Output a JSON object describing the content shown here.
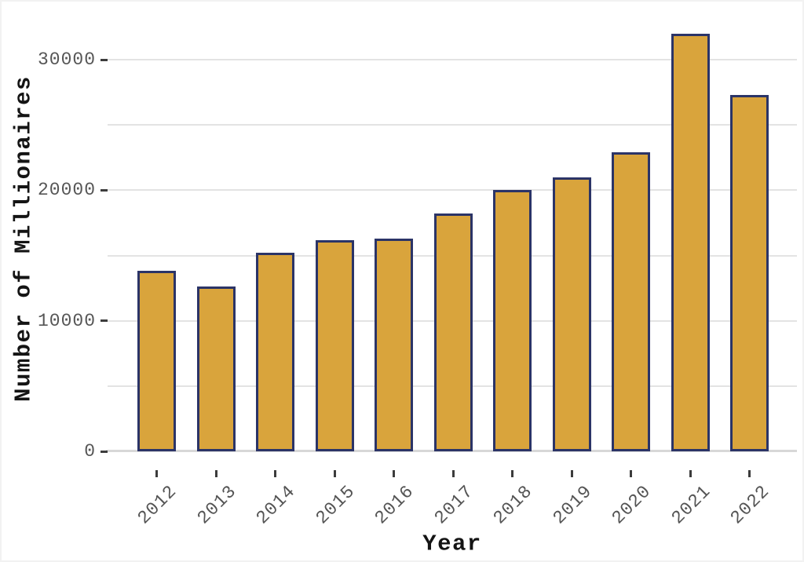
{
  "figure": {
    "background": "#ffffff",
    "border_color": "#f2f2f2"
  },
  "chart_data": {
    "type": "bar",
    "title": "",
    "xlabel": "Year",
    "ylabel": "Number of Millionaires",
    "categories": [
      "2012",
      "2013",
      "2014",
      "2015",
      "2016",
      "2017",
      "2018",
      "2019",
      "2020",
      "2021",
      "2022"
    ],
    "values": [
      13800,
      12600,
      15200,
      16200,
      16300,
      18200,
      20000,
      21000,
      22900,
      32000,
      27300
    ],
    "ylim": [
      0,
      33250
    ],
    "ytick_values": [
      0,
      10000,
      20000,
      30000
    ],
    "ytick_labels": [
      "0",
      "10000",
      "20000",
      "30000"
    ],
    "gridline_values": [
      5000,
      10000,
      15000,
      20000,
      25000,
      30000
    ],
    "grid": "horizontal",
    "legend_position": "none",
    "colors": {
      "bar_fill": "#D9A43C",
      "bar_border": "#2B3467",
      "gridline": "#e3e3e3",
      "axis_line": "#d8d8d8",
      "tick_mark": "#3c3c3c",
      "tick_label": "#565656",
      "axis_title": "#141414"
    }
  }
}
